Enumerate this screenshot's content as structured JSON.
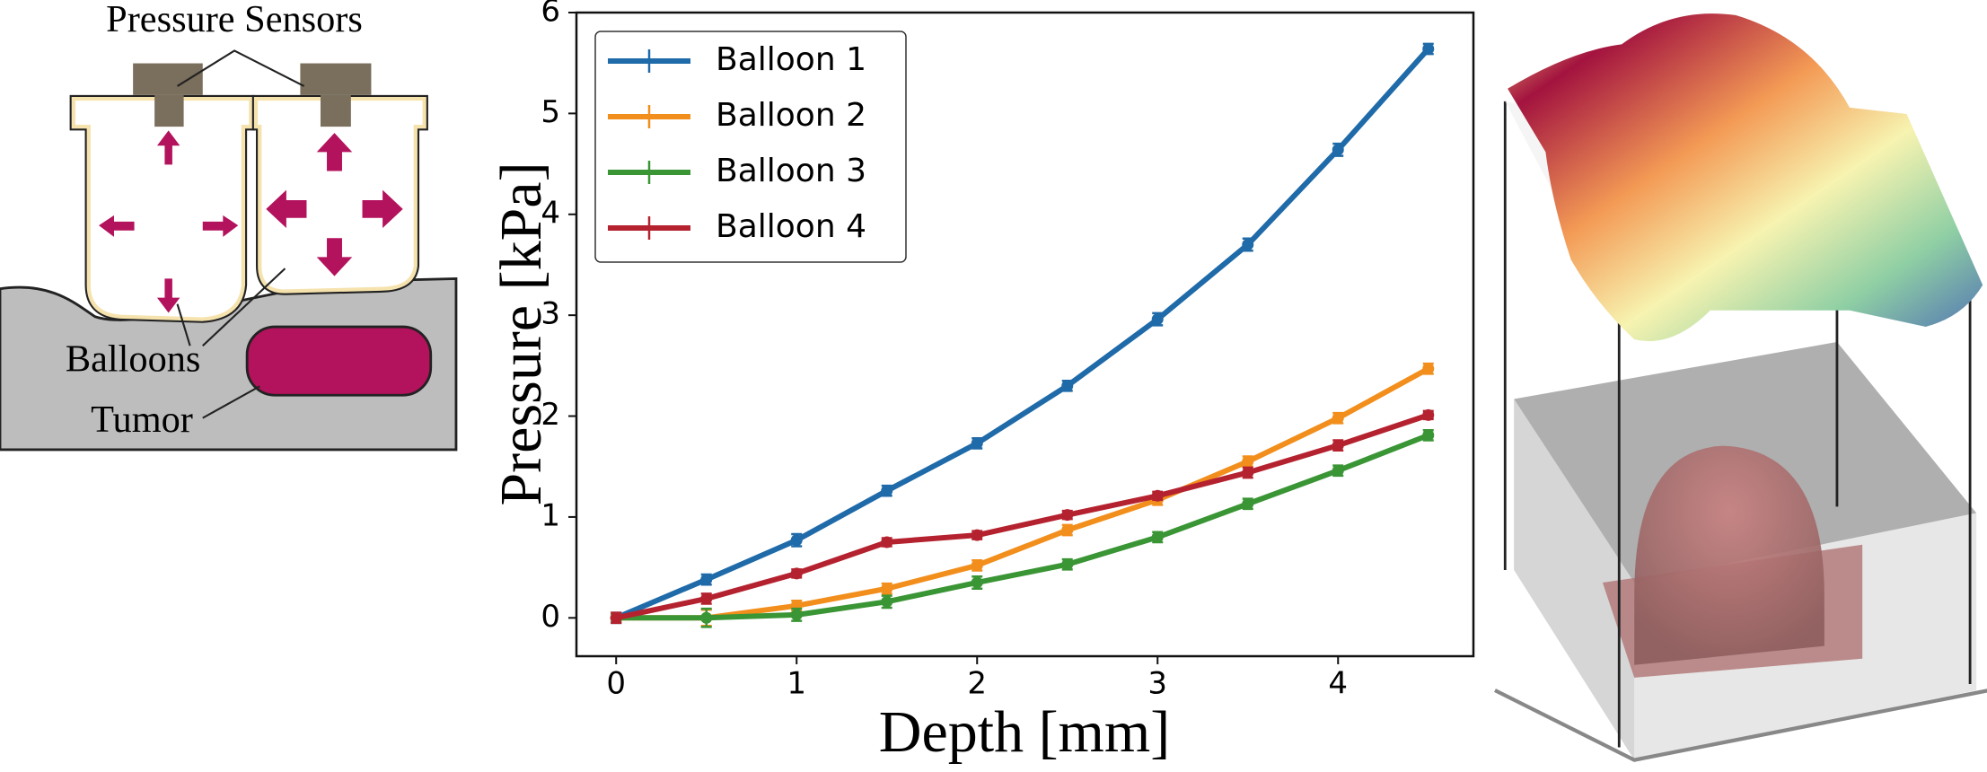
{
  "diagram": {
    "sensor_label": "Pressure Sensors",
    "balloon_label": "Balloons",
    "tumor_label": "Tumor"
  },
  "chart_data": {
    "type": "line",
    "x_label": "Depth [mm]",
    "y_label": "Pressure [kPa]",
    "x": [
      0,
      0.5,
      1,
      1.5,
      2,
      2.5,
      3,
      3.5,
      4,
      4.5
    ],
    "series": [
      {
        "name": "Balloon 1",
        "color": "#1f6aa8",
        "values": [
          0,
          0.38,
          0.77,
          1.26,
          1.73,
          2.3,
          2.96,
          3.7,
          4.64,
          5.64
        ],
        "errors": [
          0.05,
          0.05,
          0.06,
          0.05,
          0.05,
          0.05,
          0.06,
          0.06,
          0.06,
          0.05
        ]
      },
      {
        "name": "Balloon 2",
        "color": "#f28e1c",
        "values": [
          0,
          0.0,
          0.12,
          0.29,
          0.52,
          0.87,
          1.17,
          1.55,
          1.98,
          2.47
        ],
        "errors": [
          0.04,
          0.08,
          0.05,
          0.05,
          0.05,
          0.05,
          0.05,
          0.05,
          0.05,
          0.05
        ]
      },
      {
        "name": "Balloon 3",
        "color": "#3a9535",
        "values": [
          0,
          0.0,
          0.03,
          0.16,
          0.35,
          0.53,
          0.8,
          1.13,
          1.46,
          1.81
        ],
        "errors": [
          0.04,
          0.09,
          0.06,
          0.06,
          0.06,
          0.05,
          0.05,
          0.05,
          0.05,
          0.05
        ]
      },
      {
        "name": "Balloon 4",
        "color": "#b5222f",
        "values": [
          0,
          0.19,
          0.44,
          0.75,
          0.82,
          1.02,
          1.21,
          1.44,
          1.71,
          2.01
        ],
        "errors": [
          0.05,
          0.05,
          0.04,
          0.04,
          0.04,
          0.04,
          0.04,
          0.05,
          0.05,
          0.04
        ]
      }
    ],
    "xlim": [
      -0.22,
      4.75
    ],
    "ylim": [
      -0.38,
      6.0
    ],
    "xticks": [
      0,
      1,
      2,
      3,
      4
    ],
    "yticks": [
      0,
      1,
      2,
      3,
      4,
      5,
      6
    ],
    "legend": "upper-left",
    "grid": false
  }
}
